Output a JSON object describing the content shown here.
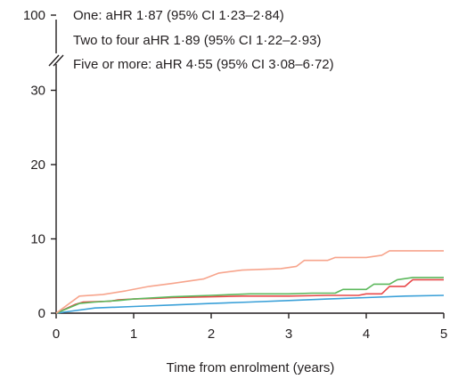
{
  "chart_data": {
    "type": "line",
    "xlabel": "Time from enrolment (years)",
    "ylabel": "",
    "xlim": [
      0,
      5
    ],
    "ylim": [
      0,
      35
    ],
    "y_break_tick": 100,
    "x_ticks": [
      0,
      1,
      2,
      3,
      4,
      5
    ],
    "y_ticks": [
      0,
      10,
      20,
      30
    ],
    "grid": false,
    "legend_placement": "top-left",
    "legend_lines": [
      "One: aHR 1·87 (95% CI 1·23–2·84)",
      "Two to four aHR 1·89 (95% CI 1·22–2·93)",
      "Five or more: aHR 4·55 (95% CI 3·08–6·72)"
    ],
    "series": [
      {
        "color": "#3aa0d8",
        "points": [
          [
            0,
            0
          ],
          [
            0.5,
            0.7
          ],
          [
            1,
            0.9
          ],
          [
            1.5,
            1.1
          ],
          [
            2,
            1.3
          ],
          [
            2.5,
            1.5
          ],
          [
            3,
            1.7
          ],
          [
            3.5,
            1.9
          ],
          [
            4,
            2.1
          ],
          [
            4.5,
            2.3
          ],
          [
            5,
            2.4
          ]
        ]
      },
      {
        "color": "#e8484a",
        "points": [
          [
            0,
            0
          ],
          [
            0.25,
            1.2
          ],
          [
            0.35,
            1.5
          ],
          [
            0.7,
            1.6
          ],
          [
            0.8,
            1.8
          ],
          [
            1.0,
            1.9
          ],
          [
            1.3,
            2.0
          ],
          [
            1.5,
            2.1
          ],
          [
            2.0,
            2.2
          ],
          [
            2.4,
            2.3
          ],
          [
            3.0,
            2.3
          ],
          [
            3.5,
            2.4
          ],
          [
            3.9,
            2.4
          ],
          [
            4.0,
            2.6
          ],
          [
            4.2,
            2.6
          ],
          [
            4.3,
            3.6
          ],
          [
            4.5,
            3.6
          ],
          [
            4.6,
            4.5
          ],
          [
            5,
            4.5
          ]
        ]
      },
      {
        "color": "#5cb85c",
        "points": [
          [
            0,
            0
          ],
          [
            0.3,
            1.3
          ],
          [
            0.5,
            1.5
          ],
          [
            0.8,
            1.7
          ],
          [
            1.0,
            1.9
          ],
          [
            1.3,
            2.1
          ],
          [
            1.5,
            2.2
          ],
          [
            2.0,
            2.4
          ],
          [
            2.5,
            2.6
          ],
          [
            3.0,
            2.6
          ],
          [
            3.3,
            2.7
          ],
          [
            3.6,
            2.7
          ],
          [
            3.7,
            3.2
          ],
          [
            4.0,
            3.2
          ],
          [
            4.1,
            3.9
          ],
          [
            4.3,
            3.9
          ],
          [
            4.4,
            4.5
          ],
          [
            4.6,
            4.8
          ],
          [
            5,
            4.8
          ]
        ]
      },
      {
        "color": "#f7a48c",
        "points": [
          [
            0,
            0
          ],
          [
            0.3,
            2.3
          ],
          [
            0.6,
            2.5
          ],
          [
            0.9,
            3.0
          ],
          [
            1.2,
            3.6
          ],
          [
            1.5,
            4.0
          ],
          [
            1.9,
            4.6
          ],
          [
            2.1,
            5.4
          ],
          [
            2.4,
            5.8
          ],
          [
            2.9,
            6.0
          ],
          [
            3.1,
            6.3
          ],
          [
            3.2,
            7.1
          ],
          [
            3.5,
            7.1
          ],
          [
            3.6,
            7.5
          ],
          [
            4.0,
            7.5
          ],
          [
            4.2,
            7.8
          ],
          [
            4.3,
            8.4
          ],
          [
            5,
            8.4
          ]
        ]
      }
    ]
  }
}
